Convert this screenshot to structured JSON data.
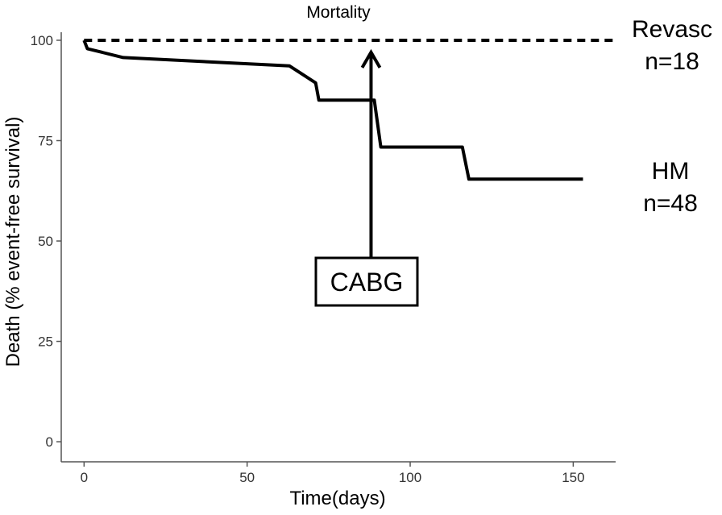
{
  "chart_data": {
    "type": "line",
    "title": "Mortality",
    "xlabel": "Time(days)",
    "ylabel": "Death (% event-free survival)",
    "xlim": [
      -7,
      163
    ],
    "ylim": [
      -5,
      102
    ],
    "x_ticks": [
      0,
      50,
      100,
      150
    ],
    "y_ticks": [
      0,
      25,
      50,
      75,
      100
    ],
    "grid": false,
    "series": [
      {
        "name": "Revasc",
        "label_line1": "Revasc",
        "label_line2": "n=18",
        "style": "dashed",
        "x": [
          0,
          163
        ],
        "y": [
          100,
          100
        ]
      },
      {
        "name": "HM",
        "label_line1": "HM",
        "label_line2": "n=48",
        "style": "solid",
        "x": [
          0,
          1,
          12,
          63,
          71,
          72,
          89,
          91,
          116,
          118,
          153
        ],
        "y": [
          100,
          97.9,
          95.7,
          93.6,
          89.4,
          85.1,
          85.1,
          73.4,
          73.4,
          65.4,
          65.4
        ]
      }
    ],
    "annotations": [
      {
        "text": "CABG",
        "x": 88,
        "y_from": 38,
        "y_to": 97
      }
    ]
  }
}
